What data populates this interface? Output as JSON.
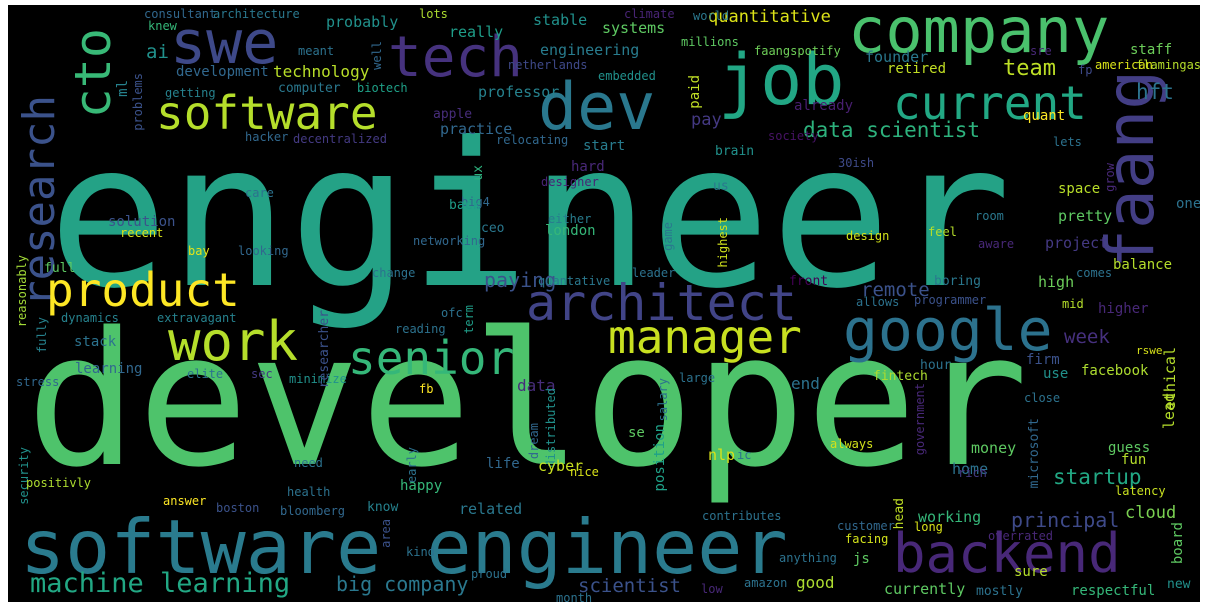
{
  "words": [
    {
      "id": "engineer",
      "text": "engineer",
      "color": "#24a286"
    },
    {
      "id": "developer",
      "text": "developer",
      "color": "#4ec36b"
    },
    {
      "id": "software-engineer",
      "text": "software engineer",
      "color": "#2a7b8e"
    },
    {
      "id": "company",
      "text": "company",
      "color": "#4ac16d"
    },
    {
      "id": "job",
      "text": "job",
      "color": "#22a785"
    },
    {
      "id": "tech",
      "text": "tech",
      "color": "#46327e"
    },
    {
      "id": "swe",
      "text": "swe",
      "color": "#3e4989"
    },
    {
      "id": "dev",
      "text": "dev",
      "color": "#2a788e"
    },
    {
      "id": "software",
      "text": "software",
      "color": "#b5de2b"
    },
    {
      "id": "current",
      "text": "current",
      "color": "#22a884"
    },
    {
      "id": "cto",
      "text": "cto",
      "color": "#38b977"
    },
    {
      "id": "research",
      "text": "research",
      "color": "#3b528b"
    },
    {
      "id": "faang",
      "text": "faang",
      "color": "#433e85"
    },
    {
      "id": "product",
      "text": "product",
      "color": "#fde725"
    },
    {
      "id": "architect",
      "text": "architect",
      "color": "#414487"
    },
    {
      "id": "google",
      "text": "google",
      "color": "#2c728e"
    },
    {
      "id": "work",
      "text": "work",
      "color": "#b5de2b"
    },
    {
      "id": "senior",
      "text": "senior",
      "color": "#35b779"
    },
    {
      "id": "manager",
      "text": "manager",
      "color": "#c8e020"
    },
    {
      "id": "backend",
      "text": "backend",
      "color": "#482878"
    },
    {
      "id": "machine-learning",
      "text": "machine learning",
      "color": "#22a884"
    },
    {
      "id": "data-scientist",
      "text": "data scientist",
      "color": "#2db27d"
    },
    {
      "id": "team",
      "text": "team",
      "color": "#bddf26"
    },
    {
      "id": "quantitative",
      "text": "quantitative",
      "color": "#dde318"
    },
    {
      "id": "technology",
      "text": "technology",
      "color": "#b8de29"
    },
    {
      "id": "engineering",
      "text": "engineering",
      "color": "#287c8e"
    },
    {
      "id": "systems",
      "text": "systems",
      "color": "#5ec962"
    },
    {
      "id": "hft",
      "text": "hft",
      "color": "#2c738e"
    },
    {
      "id": "founder",
      "text": "founder",
      "color": "#2a788e"
    },
    {
      "id": "startup",
      "text": "startup",
      "color": "#22a884"
    },
    {
      "id": "big-company",
      "text": "big company",
      "color": "#2a788e"
    },
    {
      "id": "scientist",
      "text": "scientist",
      "color": "#3b528b"
    },
    {
      "id": "principal",
      "text": "principal",
      "color": "#3e4a89"
    },
    {
      "id": "remote",
      "text": "remote",
      "color": "#3b528b"
    },
    {
      "id": "paying",
      "text": "paying",
      "color": "#3b528b"
    },
    {
      "id": "week",
      "text": "week",
      "color": "#46307e"
    },
    {
      "id": "cloud",
      "text": "cloud",
      "color": "#7ad151"
    },
    {
      "id": "ai",
      "text": "ai",
      "color": "#21918c"
    },
    {
      "id": "probably",
      "text": "probably",
      "color": "#21918c"
    },
    {
      "id": "stable",
      "text": "stable",
      "color": "#21918c"
    },
    {
      "id": "really",
      "text": "really",
      "color": "#1f9e89"
    },
    {
      "id": "ml",
      "text": "ml",
      "color": "#26828e"
    },
    {
      "id": "professor",
      "text": "professor",
      "color": "#26828e"
    },
    {
      "id": "quant",
      "text": "quant",
      "color": "#fde725"
    },
    {
      "id": "pay",
      "text": "pay",
      "color": "#443983"
    },
    {
      "id": "practice",
      "text": "practice",
      "color": "#31688e"
    },
    {
      "id": "retired",
      "text": "retired",
      "color": "#c2df23"
    },
    {
      "id": "staff",
      "text": "staff",
      "color": "#6ccd5a"
    },
    {
      "id": "consultant",
      "text": "consultant",
      "color": "#31688e"
    },
    {
      "id": "architecture",
      "text": "architecture",
      "color": "#2a788e"
    },
    {
      "id": "knew",
      "text": "knew",
      "color": "#35b779"
    },
    {
      "id": "lots",
      "text": "lots",
      "color": "#addc30"
    },
    {
      "id": "climate",
      "text": "climate",
      "color": "#482475"
    },
    {
      "id": "world",
      "text": "world",
      "color": "#2a788e"
    },
    {
      "id": "meant",
      "text": "meant",
      "color": "#2c728e"
    },
    {
      "id": "well",
      "text": "well",
      "color": "#31688e"
    },
    {
      "id": "netherlands",
      "text": "netherlands",
      "color": "#3e4989"
    },
    {
      "id": "millions",
      "text": "millions",
      "color": "#5ec962"
    },
    {
      "id": "faangspotify",
      "text": "faangspotify",
      "color": "#6ece58"
    },
    {
      "id": "flamingass",
      "text": "flamingass",
      "color": "#b5de2b"
    },
    {
      "id": "sre",
      "text": "sre",
      "color": "#482878"
    },
    {
      "id": "fp",
      "text": "fp",
      "color": "#3e4a89"
    },
    {
      "id": "american",
      "text": "american",
      "color": "#dae319"
    },
    {
      "id": "development",
      "text": "development",
      "color": "#31688e"
    },
    {
      "id": "computer",
      "text": "computer",
      "color": "#2a788e"
    },
    {
      "id": "biotech",
      "text": "biotech",
      "color": "#1fa188"
    },
    {
      "id": "embedded",
      "text": "embedded",
      "color": "#21918c"
    },
    {
      "id": "paid",
      "text": "paid",
      "color": "#c0df25"
    },
    {
      "id": "getting",
      "text": "getting",
      "color": "#26828e"
    },
    {
      "id": "problems",
      "text": "problems",
      "color": "#3b528b"
    },
    {
      "id": "apple",
      "text": "apple",
      "color": "#472d7b"
    },
    {
      "id": "already",
      "text": "already",
      "color": "#481f70"
    },
    {
      "id": "society",
      "text": "society",
      "color": "#471365"
    },
    {
      "id": "lets",
      "text": "lets",
      "color": "#2c728e"
    },
    {
      "id": "hacker",
      "text": "hacker",
      "color": "#31688e"
    },
    {
      "id": "decentralized",
      "text": "decentralized",
      "color": "#443a83"
    },
    {
      "id": "relocating",
      "text": "relocating",
      "color": "#31688e"
    },
    {
      "id": "start",
      "text": "start",
      "color": "#287c8e"
    },
    {
      "id": "brain",
      "text": "brain",
      "color": "#21918c"
    },
    {
      "id": "hard",
      "text": "hard",
      "color": "#482878"
    },
    {
      "id": "designer",
      "text": "designer",
      "color": "#482475"
    },
    {
      "id": "ux",
      "text": "ux",
      "color": "#2db27d"
    },
    {
      "id": "us",
      "text": "us",
      "color": "#2a788e"
    },
    {
      "id": "30ish",
      "text": "30ish",
      "color": "#3e4a89"
    },
    {
      "id": "grow",
      "text": "grow",
      "color": "#482878"
    },
    {
      "id": "space",
      "text": "space",
      "color": "#b8de29"
    },
    {
      "id": "big4",
      "text": "big4",
      "color": "#31688e"
    },
    {
      "id": "care",
      "text": "care",
      "color": "#2c728e"
    },
    {
      "id": "back",
      "text": "back",
      "color": "#1f9e89"
    },
    {
      "id": "either",
      "text": "either",
      "color": "#287c8e"
    },
    {
      "id": "one",
      "text": "one",
      "color": "#2c728e"
    },
    {
      "id": "room",
      "text": "room",
      "color": "#2a788e"
    },
    {
      "id": "solution",
      "text": "solution",
      "color": "#3b528b"
    },
    {
      "id": "recent",
      "text": "recent",
      "color": "#d8e219"
    },
    {
      "id": "ceo",
      "text": "ceo",
      "color": "#2a788e"
    },
    {
      "id": "london",
      "text": "london",
      "color": "#35b779"
    },
    {
      "id": "pretty",
      "text": "pretty",
      "color": "#5ec962"
    },
    {
      "id": "project",
      "text": "project",
      "color": "#443983"
    },
    {
      "id": "bay",
      "text": "bay",
      "color": "#e5e419"
    },
    {
      "id": "looking",
      "text": "looking",
      "color": "#31688e"
    },
    {
      "id": "networking",
      "text": "networking",
      "color": "#31688e"
    },
    {
      "id": "game",
      "text": "game",
      "color": "#2a788e"
    },
    {
      "id": "highest",
      "text": "highest",
      "color": "#d0e11c"
    },
    {
      "id": "design",
      "text": "design",
      "color": "#d2e21b"
    },
    {
      "id": "feel",
      "text": "feel",
      "color": "#b5de2b"
    },
    {
      "id": "aware",
      "text": "aware",
      "color": "#482878"
    },
    {
      "id": "balance",
      "text": "balance",
      "color": "#b5de2b"
    },
    {
      "id": "full",
      "text": "full",
      "color": "#5ec962"
    },
    {
      "id": "change",
      "text": "change",
      "color": "#2c728e"
    },
    {
      "id": "quantative",
      "text": "quantative",
      "color": "#2a788e"
    },
    {
      "id": "leader",
      "text": "leader",
      "color": "#2c728e"
    },
    {
      "id": "front",
      "text": "front",
      "color": "#440154"
    },
    {
      "id": "boring",
      "text": "boring",
      "color": "#2a788e"
    },
    {
      "id": "high",
      "text": "high",
      "color": "#6ccd5a"
    },
    {
      "id": "comes",
      "text": "comes",
      "color": "#2c728e"
    },
    {
      "id": "reasonably",
      "text": "reasonably",
      "color": "#a2da37"
    },
    {
      "id": "fully",
      "text": "fully",
      "color": "#26828e"
    },
    {
      "id": "dynamics",
      "text": "dynamics",
      "color": "#26828e"
    },
    {
      "id": "extravagant",
      "text": "extravagant",
      "color": "#26828e"
    },
    {
      "id": "ofc",
      "text": "ofc",
      "color": "#2c728e"
    },
    {
      "id": "term",
      "text": "term",
      "color": "#1f9e89"
    },
    {
      "id": "allows",
      "text": "allows",
      "color": "#2c728e"
    },
    {
      "id": "programmer",
      "text": "programmer",
      "color": "#3b528b"
    },
    {
      "id": "mid",
      "text": "mid",
      "color": "#b5de2b"
    },
    {
      "id": "higher",
      "text": "higher",
      "color": "#482878"
    },
    {
      "id": "stack",
      "text": "stack",
      "color": "#2c728e"
    },
    {
      "id": "learning",
      "text": "learning",
      "color": "#31688e"
    },
    {
      "id": "stress",
      "text": "stress",
      "color": "#31688e"
    },
    {
      "id": "elite",
      "text": "elite",
      "color": "#2c728e"
    },
    {
      "id": "sec",
      "text": "sec",
      "color": "#443983"
    },
    {
      "id": "minimize",
      "text": "minimize",
      "color": "#21918c"
    },
    {
      "id": "reading",
      "text": "reading",
      "color": "#2c728e"
    },
    {
      "id": "researcher",
      "text": "researcher",
      "color": "#3b528b"
    },
    {
      "id": "data",
      "text": "data",
      "color": "#472d7b"
    },
    {
      "id": "fb",
      "text": "fb",
      "color": "#fde725"
    },
    {
      "id": "salary",
      "text": "salary",
      "color": "#2c728e"
    },
    {
      "id": "large",
      "text": "large",
      "color": "#2c728e"
    },
    {
      "id": "hour",
      "text": "hour",
      "color": "#2c728e"
    },
    {
      "id": "firm",
      "text": "firm",
      "color": "#3b528b"
    },
    {
      "id": "use",
      "text": "use",
      "color": "#21918c"
    },
    {
      "id": "ethical",
      "text": "ethical",
      "color": "#b5de2b"
    },
    {
      "id": "lead",
      "text": "lead",
      "color": "#b5de2b"
    },
    {
      "id": "rswe",
      "text": "rswe",
      "color": "#d8e219"
    },
    {
      "id": "fintech",
      "text": "fintech",
      "color": "#addc30"
    },
    {
      "id": "facebook",
      "text": "facebook",
      "color": "#addc30"
    },
    {
      "id": "end",
      "text": "end",
      "color": "#2c728e"
    },
    {
      "id": "close",
      "text": "close",
      "color": "#2c728e"
    },
    {
      "id": "microsoft",
      "text": "microsoft",
      "color": "#31688e"
    },
    {
      "id": "government",
      "text": "government",
      "color": "#482878"
    },
    {
      "id": "always",
      "text": "always",
      "color": "#d2e21b"
    },
    {
      "id": "guess",
      "text": "guess",
      "color": "#5ec962"
    },
    {
      "id": "fun",
      "text": "fun",
      "color": "#b5de2b"
    },
    {
      "id": "money",
      "text": "money",
      "color": "#5ec962"
    },
    {
      "id": "home",
      "text": "home",
      "color": "#2c728e"
    },
    {
      "id": "rich",
      "text": "rich",
      "color": "#443983"
    },
    {
      "id": "security",
      "text": "security",
      "color": "#21918c"
    },
    {
      "id": "need",
      "text": "need",
      "color": "#2c728e"
    },
    {
      "id": "early",
      "text": "early",
      "color": "#2c728e"
    },
    {
      "id": "dream",
      "text": "dream",
      "color": "#31688e"
    },
    {
      "id": "distributed",
      "text": "distributed",
      "color": "#21918c"
    },
    {
      "id": "life",
      "text": "life",
      "color": "#31688e"
    },
    {
      "id": "cyber",
      "text": "cyber",
      "color": "#c8e020"
    },
    {
      "id": "nice",
      "text": "nice",
      "color": "#d8e219"
    },
    {
      "id": "se",
      "text": "se",
      "color": "#5ec962"
    },
    {
      "id": "position",
      "text": "position",
      "color": "#1fa188"
    },
    {
      "id": "nlp",
      "text": "nlp",
      "color": "#d8e219"
    },
    {
      "id": "ic",
      "text": "ic",
      "color": "#2c728e"
    },
    {
      "id": "positivly",
      "text": "positivly",
      "color": "#addc30"
    },
    {
      "id": "health",
      "text": "health",
      "color": "#2c728e"
    },
    {
      "id": "happy",
      "text": "happy",
      "color": "#35b779"
    },
    {
      "id": "answer",
      "text": "answer",
      "color": "#fde725"
    },
    {
      "id": "boston",
      "text": "boston",
      "color": "#3b528b"
    },
    {
      "id": "bloomberg",
      "text": "bloomberg",
      "color": "#31688e"
    },
    {
      "id": "know",
      "text": "know",
      "color": "#26828e"
    },
    {
      "id": "related",
      "text": "related",
      "color": "#2a788e"
    },
    {
      "id": "working",
      "text": "working",
      "color": "#35b779"
    },
    {
      "id": "latency",
      "text": "latency",
      "color": "#c8e020"
    },
    {
      "id": "head",
      "text": "head",
      "color": "#c0df25"
    },
    {
      "id": "contributes",
      "text": "contributes",
      "color": "#2c728e"
    },
    {
      "id": "customer",
      "text": "customer",
      "color": "#31688e"
    },
    {
      "id": "facing",
      "text": "facing",
      "color": "#d2e21b"
    },
    {
      "id": "long",
      "text": "long",
      "color": "#d8e219"
    },
    {
      "id": "overrated",
      "text": "overrated",
      "color": "#482878"
    },
    {
      "id": "board",
      "text": "board",
      "color": "#5ec962"
    },
    {
      "id": "area",
      "text": "area",
      "color": "#3b528b"
    },
    {
      "id": "kind",
      "text": "kind",
      "color": "#2c728e"
    },
    {
      "id": "anything",
      "text": "anything",
      "color": "#2c728e"
    },
    {
      "id": "js",
      "text": "js",
      "color": "#5ec962"
    },
    {
      "id": "good",
      "text": "good",
      "color": "#addc30"
    },
    {
      "id": "proud",
      "text": "proud",
      "color": "#2c728e"
    },
    {
      "id": "month",
      "text": "month",
      "color": "#2c728e"
    },
    {
      "id": "low",
      "text": "low",
      "color": "#482878"
    },
    {
      "id": "amazon",
      "text": "amazon",
      "color": "#2c728e"
    },
    {
      "id": "currently",
      "text": "currently",
      "color": "#5ec962"
    },
    {
      "id": "sure",
      "text": "sure",
      "color": "#b5de2b"
    },
    {
      "id": "mostly",
      "text": "mostly",
      "color": "#2c728e"
    },
    {
      "id": "respectful",
      "text": "respectful",
      "color": "#35b779"
    },
    {
      "id": "new",
      "text": "new",
      "color": "#21918c"
    }
  ]
}
